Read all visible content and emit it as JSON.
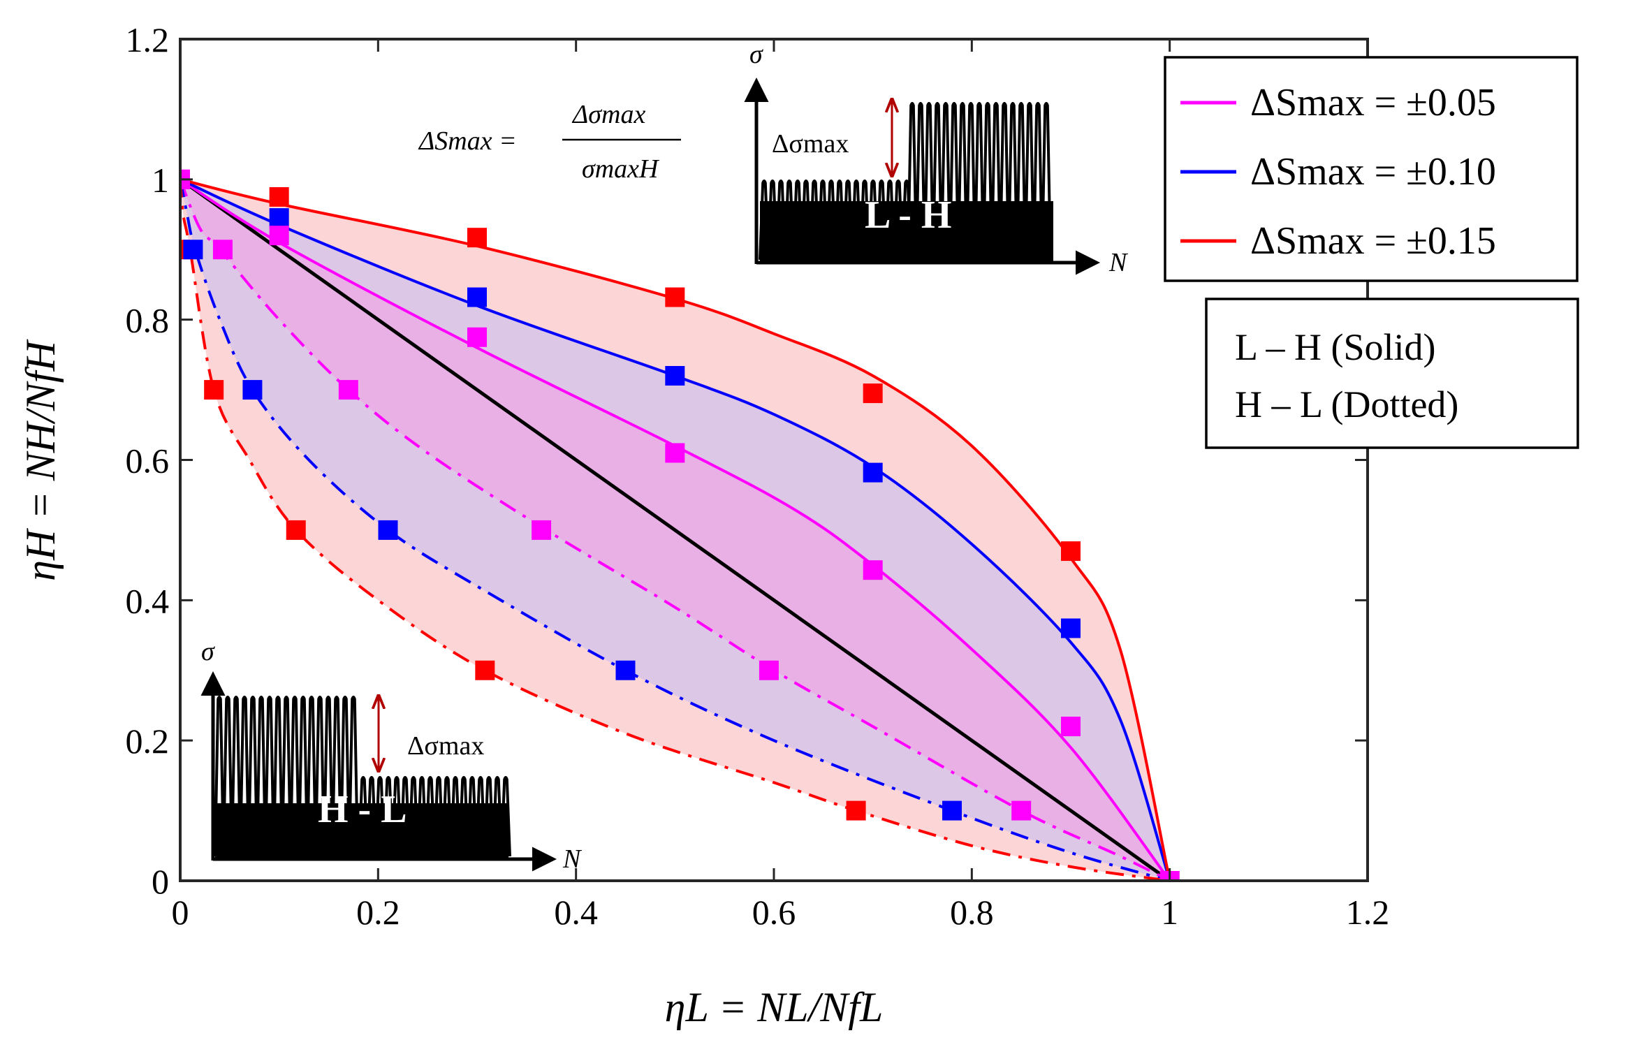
{
  "chart_data": {
    "type": "line",
    "xlabel": "ηL = NL/NfL",
    "ylabel": "ηH = NH/NfH",
    "xlim": [
      0,
      1.2
    ],
    "ylim": [
      0,
      1.2
    ],
    "x_ticks": [
      "0",
      "0.2",
      "0.4",
      "0.6",
      "0.8",
      "1",
      "1.2"
    ],
    "y_ticks": [
      "0",
      "0.2",
      "0.4",
      "0.6",
      "0.8",
      "1",
      "1.2"
    ],
    "grid": false,
    "colors": {
      "s005": "#ff00ff",
      "s010": "#0000ff",
      "s015": "#ff0000",
      "reference": "#000000",
      "fill_outer": "#fcd6d6",
      "fill_middle": "#dcc8e6",
      "fill_inner": "#e9b0e6"
    },
    "legend": {
      "position": "top-right",
      "entries": [
        {
          "label": "ΔSmax = ±0.05",
          "series": "s005"
        },
        {
          "label": "ΔSmax = ±0.10",
          "series": "s010"
        },
        {
          "label": "ΔSmax = ±0.15",
          "series": "s015"
        }
      ]
    },
    "style_note": {
      "line1": "L – H (Solid)",
      "line2": "H – L (Dotted)"
    },
    "equation": {
      "lhs": "ΔSmax =",
      "numerator": "Δσmax",
      "denominator": "σmaxH"
    },
    "reference_line": {
      "x": [
        0,
        1
      ],
      "y": [
        1,
        0
      ]
    },
    "series": [
      {
        "name": "ΔSmax = ±0.05 (L-H)",
        "color_key": "s005",
        "style": "solid",
        "curve": {
          "x": [
            0,
            0.1,
            0.3,
            0.5,
            0.62,
            0.7,
            0.8,
            0.9,
            1.0
          ],
          "y": [
            1.0,
            0.91,
            0.76,
            0.62,
            0.53,
            0.45,
            0.33,
            0.19,
            0.0
          ]
        },
        "markers": {
          "x": [
            0,
            0.1,
            0.3,
            0.5,
            0.7,
            0.9,
            1.0
          ],
          "y": [
            1.0,
            0.92,
            0.775,
            0.61,
            0.443,
            0.22,
            0.0
          ]
        }
      },
      {
        "name": "ΔSmax = ±0.10 (L-H)",
        "color_key": "s010",
        "style": "solid",
        "curve": {
          "x": [
            0,
            0.1,
            0.3,
            0.5,
            0.6,
            0.7,
            0.8,
            0.9,
            0.95,
            1.0
          ],
          "y": [
            1.0,
            0.935,
            0.82,
            0.72,
            0.665,
            0.59,
            0.48,
            0.34,
            0.23,
            0.0
          ]
        },
        "markers": {
          "x": [
            0.1,
            0.3,
            0.5,
            0.7,
            0.9
          ],
          "y": [
            0.945,
            0.832,
            0.72,
            0.582,
            0.36
          ]
        }
      },
      {
        "name": "ΔSmax = ±0.15 (L-H)",
        "color_key": "s015",
        "style": "solid",
        "curve": {
          "x": [
            0,
            0.1,
            0.3,
            0.5,
            0.6,
            0.7,
            0.8,
            0.9,
            0.95,
            1.0
          ],
          "y": [
            1.0,
            0.965,
            0.905,
            0.83,
            0.78,
            0.72,
            0.62,
            0.46,
            0.33,
            0.0
          ]
        },
        "markers": {
          "x": [
            0.1,
            0.3,
            0.5,
            0.7,
            0.9
          ],
          "y": [
            0.975,
            0.917,
            0.832,
            0.695,
            0.47
          ]
        }
      },
      {
        "name": "ΔSmax = ±0.05 (H-L)",
        "color_key": "s005",
        "style": "dashdot",
        "curve": {
          "x": [
            0,
            0.02,
            0.04,
            0.1,
            0.17,
            0.25,
            0.37,
            0.5,
            0.6,
            0.7,
            0.85,
            0.95,
            1.0
          ],
          "y": [
            1.0,
            0.93,
            0.9,
            0.8,
            0.7,
            0.61,
            0.5,
            0.39,
            0.3,
            0.22,
            0.1,
            0.035,
            0.0
          ]
        },
        "markers": {
          "x": [
            0,
            0.043,
            0.17,
            0.365,
            0.595,
            0.85,
            1.0
          ],
          "y": [
            1.0,
            0.9,
            0.7,
            0.5,
            0.3,
            0.1,
            0.0
          ]
        }
      },
      {
        "name": "ΔSmax = ±0.10 (H-L)",
        "color_key": "s010",
        "style": "dashdot",
        "curve": {
          "x": [
            0,
            0.007,
            0.015,
            0.04,
            0.073,
            0.13,
            0.21,
            0.3,
            0.45,
            0.6,
            0.78,
            0.9,
            1.0
          ],
          "y": [
            1.0,
            0.95,
            0.9,
            0.8,
            0.7,
            0.6,
            0.5,
            0.42,
            0.3,
            0.2,
            0.1,
            0.04,
            0.0
          ]
        },
        "markers": {
          "x": [
            0.013,
            0.073,
            0.21,
            0.45,
            0.78
          ],
          "y": [
            0.9,
            0.7,
            0.5,
            0.3,
            0.1
          ]
        }
      },
      {
        "name": "ΔSmax = ±0.15 (H-L)",
        "color_key": "s015",
        "style": "dashdot",
        "curve": {
          "x": [
            0,
            0.003,
            0.01,
            0.034,
            0.07,
            0.117,
            0.2,
            0.308,
            0.45,
            0.6,
            0.683,
            0.8,
            0.9,
            1.0
          ],
          "y": [
            1.0,
            0.95,
            0.9,
            0.7,
            0.6,
            0.5,
            0.4,
            0.3,
            0.21,
            0.14,
            0.1,
            0.05,
            0.02,
            0.0
          ]
        },
        "markers": {
          "x": [
            0.0,
            0.034,
            0.117,
            0.308,
            0.683
          ],
          "y": [
            0.9,
            0.7,
            0.5,
            0.3,
            0.1
          ]
        }
      }
    ],
    "insets": [
      {
        "name": "L - H",
        "label": "L - H",
        "axis_y": "σ",
        "axis_x": "N",
        "amplitude_label": "Δσmax"
      },
      {
        "name": "H - L",
        "label": "H - L",
        "axis_y": "σ",
        "axis_x": "N",
        "amplitude_label": "Δσmax"
      }
    ]
  }
}
